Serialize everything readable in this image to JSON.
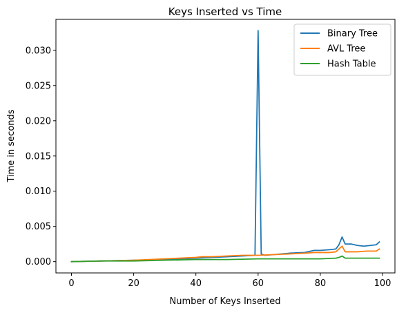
{
  "chart_data": {
    "type": "line",
    "title": "Keys Inserted vs Time",
    "xlabel": "Number of Keys Inserted",
    "ylabel": "Time in seconds",
    "xlim": [
      -5,
      104
    ],
    "ylim": [
      -0.0016,
      0.0344
    ],
    "xticks": [
      0,
      20,
      40,
      60,
      80,
      100
    ],
    "xtick_labels": [
      "0",
      "20",
      "40",
      "60",
      "80",
      "100"
    ],
    "yticks": [
      0.0,
      0.005,
      0.01,
      0.015,
      0.02,
      0.025,
      0.03
    ],
    "ytick_labels": [
      "0.000",
      "0.005",
      "0.010",
      "0.015",
      "0.020",
      "0.025",
      "0.030"
    ],
    "grid": false,
    "legend_position": "top-right",
    "series": [
      {
        "name": "Binary Tree",
        "color": "#1f77b4",
        "x": [
          0,
          10,
          20,
          30,
          40,
          45,
          50,
          55,
          59,
          60,
          61,
          62,
          65,
          70,
          75,
          78,
          80,
          83,
          85,
          86,
          87,
          88,
          90,
          92,
          94,
          96,
          98,
          99
        ],
        "y": [
          0,
          0.0001,
          0.0002,
          0.0003,
          0.0005,
          0.0006,
          0.0007,
          0.0008,
          0.0009,
          0.0328,
          0.0011,
          0.0009,
          0.001,
          0.0012,
          0.0013,
          0.0016,
          0.0016,
          0.0017,
          0.0018,
          0.0024,
          0.0035,
          0.0025,
          0.0025,
          0.0023,
          0.0022,
          0.0023,
          0.0024,
          0.0028
        ]
      },
      {
        "name": "AVL Tree",
        "color": "#ff7f0e",
        "x": [
          0,
          10,
          20,
          30,
          40,
          42,
          45,
          50,
          55,
          60,
          65,
          70,
          75,
          78,
          80,
          83,
          85,
          86,
          87,
          88,
          90,
          92,
          95,
          98,
          99
        ],
        "y": [
          0,
          0.0001,
          0.0002,
          0.0004,
          0.0006,
          0.0007,
          0.0007,
          0.0008,
          0.0009,
          0.0009,
          0.001,
          0.0011,
          0.0012,
          0.0013,
          0.0013,
          0.0013,
          0.0014,
          0.0018,
          0.0022,
          0.0014,
          0.0014,
          0.0014,
          0.0015,
          0.0015,
          0.0018
        ]
      },
      {
        "name": "Hash Table",
        "color": "#2ca02c",
        "x": [
          0,
          10,
          20,
          30,
          40,
          50,
          60,
          70,
          80,
          85,
          86,
          87,
          88,
          90,
          92,
          95,
          99
        ],
        "y": [
          0,
          0.0001,
          0.0001,
          0.0002,
          0.0003,
          0.0003,
          0.0004,
          0.0004,
          0.0004,
          0.0005,
          0.0006,
          0.0008,
          0.0005,
          0.0005,
          0.0005,
          0.0005,
          0.0005
        ]
      }
    ]
  }
}
